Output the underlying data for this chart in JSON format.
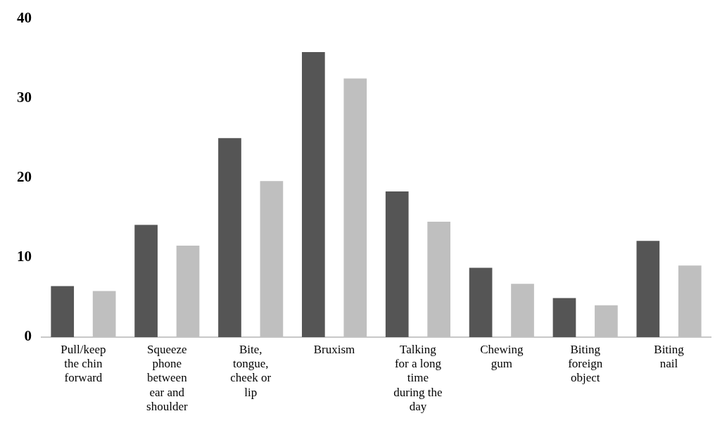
{
  "chart_data": {
    "type": "bar",
    "categories": [
      "Pull/keep the chin forward",
      "Squeeze phone between ear and shoulder",
      "Bite, tongue, cheek or lip",
      "Bruxism",
      "Talking for a long time during the day",
      "Chewing gum",
      "Biting foreign object",
      "Biting nail"
    ],
    "series": [
      {
        "color": "#555555",
        "values": [
          6.4,
          14.1,
          25.0,
          35.8,
          18.3,
          8.7,
          4.9,
          12.1
        ]
      },
      {
        "color": "#bfbfbf",
        "values": [
          5.8,
          11.5,
          19.6,
          32.5,
          14.5,
          6.7,
          4.0,
          9.0
        ]
      }
    ],
    "ylim": [
      0,
      40
    ],
    "yticks": [
      0,
      10,
      20,
      30,
      40
    ],
    "grid": false,
    "legend": false
  }
}
